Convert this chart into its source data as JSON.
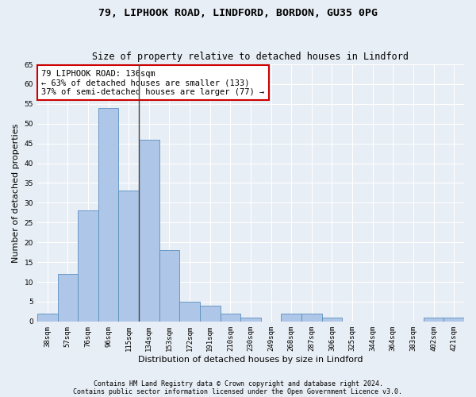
{
  "title1": "79, LIPHOOK ROAD, LINDFORD, BORDON, GU35 0PG",
  "title2": "Size of property relative to detached houses in Lindford",
  "xlabel": "Distribution of detached houses by size in Lindford",
  "ylabel": "Number of detached properties",
  "footnote1": "Contains HM Land Registry data © Crown copyright and database right 2024.",
  "footnote2": "Contains public sector information licensed under the Open Government Licence v3.0.",
  "categories": [
    "38sqm",
    "57sqm",
    "76sqm",
    "96sqm",
    "115sqm",
    "134sqm",
    "153sqm",
    "172sqm",
    "191sqm",
    "210sqm",
    "230sqm",
    "249sqm",
    "268sqm",
    "287sqm",
    "306sqm",
    "325sqm",
    "344sqm",
    "364sqm",
    "383sqm",
    "402sqm",
    "421sqm"
  ],
  "values": [
    2,
    12,
    28,
    54,
    33,
    46,
    18,
    5,
    4,
    2,
    1,
    0,
    2,
    2,
    1,
    0,
    0,
    0,
    0,
    1,
    1
  ],
  "bar_color": "#aec6e8",
  "bar_edge_color": "#5a8fc0",
  "highlight_line_color": "#444444",
  "annotation_text": "79 LIPHOOK ROAD: 136sqm\n← 63% of detached houses are smaller (133)\n37% of semi-detached houses are larger (77) →",
  "annotation_box_color": "#ffffff",
  "annotation_box_edge_color": "#cc0000",
  "ylim": [
    0,
    65
  ],
  "yticks": [
    0,
    5,
    10,
    15,
    20,
    25,
    30,
    35,
    40,
    45,
    50,
    55,
    60,
    65
  ],
  "bg_color": "#e8eef5",
  "plot_bg_color": "#e8eef5",
  "grid_color": "#ffffff",
  "title_fontsize": 9.5,
  "subtitle_fontsize": 8.5,
  "axis_label_fontsize": 8,
  "tick_fontsize": 6.5,
  "annotation_fontsize": 7.5,
  "footnote_fontsize": 6.0
}
